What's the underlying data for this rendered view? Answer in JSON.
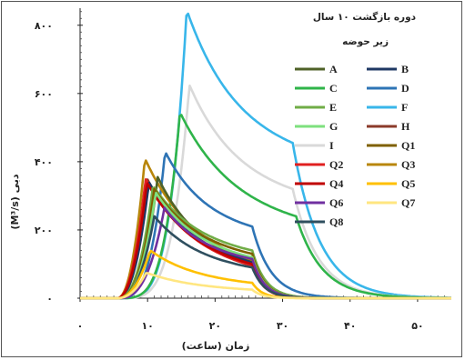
{
  "chart_data": {
    "type": "line",
    "legend_title": "دوره بازگشت ۱۰ سال",
    "legend_subtitle": "زیر حوضه",
    "legend_position": "right",
    "xlabel": "زمان (ساعت)",
    "ylabel": "(M³/s) دبی",
    "xlim": [
      0,
      55
    ],
    "ylim": [
      0,
      850
    ],
    "x_ticks": [
      0,
      10,
      20,
      30,
      40,
      50
    ],
    "x_tick_labels": [
      "۰",
      "۱۰",
      "۲۰",
      "۳۰",
      "۴۰",
      "۵۰"
    ],
    "y_ticks": [
      0,
      200,
      400,
      600,
      800
    ],
    "y_tick_labels": [
      "۰",
      "۲۰۰",
      "۴۰۰",
      "۶۰۰",
      "۸۰۰"
    ],
    "grid": false,
    "series": [
      {
        "name": "A",
        "color": "#4f6228",
        "peak_time": 11.5,
        "peak": 355,
        "rise": 2.8,
        "t_end": 25.5,
        "base_end": 105,
        "tail": 1.8
      },
      {
        "name": "B",
        "color": "#1f3864",
        "peak_time": 10.2,
        "peak": 340,
        "rise": 2.3,
        "t_end": 25.5,
        "base_end": 105,
        "tail": 1.8
      },
      {
        "name": "C",
        "color": "#2fb44a",
        "peak_time": 14.8,
        "peak": 545,
        "rise": 4.0,
        "t_end": 32.0,
        "base_end": 240,
        "tail": 3.8
      },
      {
        "name": "D",
        "color": "#2e74b5",
        "peak_time": 12.6,
        "peak": 430,
        "rise": 3.3,
        "t_end": 25.5,
        "base_end": 210,
        "tail": 2.8
      },
      {
        "name": "E",
        "color": "#70ad47",
        "peak_time": 10.8,
        "peak": 330,
        "rise": 2.5,
        "t_end": 25.5,
        "base_end": 140,
        "tail": 2.0
      },
      {
        "name": "F",
        "color": "#38b6ea",
        "peak_time": 15.8,
        "peak": 845,
        "rise": 4.2,
        "t_end": 31.5,
        "base_end": 455,
        "tail": 4.0
      },
      {
        "name": "G",
        "color": "#7ee07e",
        "peak_time": 11.2,
        "peak": 310,
        "rise": 2.6,
        "t_end": 25.5,
        "base_end": 120,
        "tail": 1.8
      },
      {
        "name": "H",
        "color": "#8b3a2a",
        "peak_time": 9.8,
        "peak": 355,
        "rise": 2.2,
        "t_end": 25.5,
        "base_end": 95,
        "tail": 1.7
      },
      {
        "name": "I",
        "color": "#d9d9d9",
        "peak_time": 16.2,
        "peak": 625,
        "rise": 4.2,
        "t_end": 31.5,
        "base_end": 320,
        "tail": 3.8
      },
      {
        "name": "Q1",
        "color": "#7f6000",
        "peak_time": 11.0,
        "peak": 320,
        "rise": 2.6,
        "t_end": 25.5,
        "base_end": 130,
        "tail": 1.8
      },
      {
        "name": "Q2",
        "color": "#e02020",
        "peak_time": 9.7,
        "peak": 350,
        "rise": 2.2,
        "t_end": 25.5,
        "base_end": 95,
        "tail": 1.7
      },
      {
        "name": "Q3",
        "color": "#b8860b",
        "peak_time": 9.6,
        "peak": 410,
        "rise": 2.2,
        "t_end": 25.5,
        "base_end": 110,
        "tail": 1.7
      },
      {
        "name": "Q4",
        "color": "#c00000",
        "peak_time": 9.9,
        "peak": 340,
        "rise": 2.2,
        "t_end": 25.5,
        "base_end": 100,
        "tail": 1.7
      },
      {
        "name": "Q5",
        "color": "#ffc000",
        "peak_time": 10.4,
        "peak": 140,
        "rise": 2.2,
        "t_end": 25.5,
        "base_end": 45,
        "tail": 1.5
      },
      {
        "name": "Q6",
        "color": "#7030a0",
        "peak_time": 12.5,
        "peak": 265,
        "rise": 2.8,
        "t_end": 25.5,
        "base_end": 115,
        "tail": 1.8
      },
      {
        "name": "Q7",
        "color": "#ffe680",
        "peak_time": 9.8,
        "peak": 75,
        "rise": 2.2,
        "t_end": 25.5,
        "base_end": 25,
        "tail": 1.5
      },
      {
        "name": "Q8",
        "color": "#2f4f5f",
        "peak_time": 11.0,
        "peak": 240,
        "rise": 2.5,
        "t_end": 25.5,
        "base_end": 90,
        "tail": 1.8
      }
    ]
  }
}
